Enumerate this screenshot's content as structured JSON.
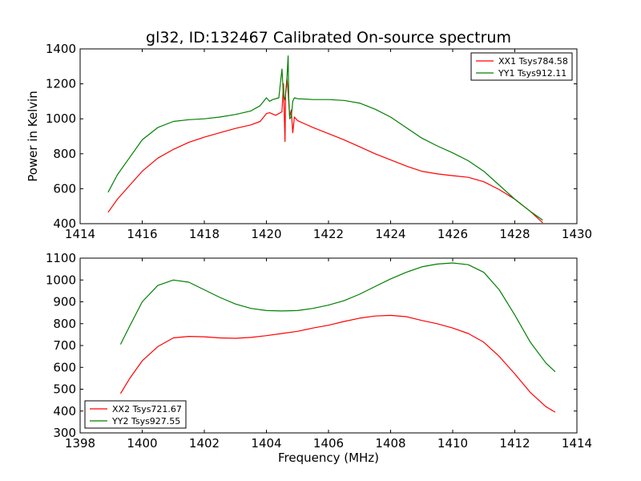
{
  "title": "gl32, ID:132467 Calibrated On-source spectrum",
  "colors": {
    "red": "#ff0000",
    "green": "#008000"
  },
  "chart_data": [
    {
      "type": "line",
      "ylabel": "Power in Kelvin",
      "xlabel": "",
      "xlim": [
        1414,
        1430
      ],
      "ylim": [
        400,
        1400
      ],
      "xticks": [
        1414,
        1416,
        1418,
        1420,
        1422,
        1424,
        1426,
        1428,
        1430
      ],
      "yticks": [
        400,
        600,
        800,
        1000,
        1200,
        1400
      ],
      "legend_position": "upper right",
      "series": [
        {
          "name": "XX1 Tsys784.58",
          "color": "#ff0000",
          "x": [
            1414.9,
            1415.2,
            1415.6,
            1416.0,
            1416.5,
            1417.0,
            1417.5,
            1418.0,
            1418.5,
            1419.0,
            1419.5,
            1419.8,
            1420.0,
            1420.1,
            1420.3,
            1420.5,
            1420.55,
            1420.6,
            1420.62,
            1420.66,
            1420.7,
            1420.75,
            1420.8,
            1420.85,
            1420.9,
            1421.0,
            1421.5,
            1422.0,
            1422.5,
            1423.0,
            1423.5,
            1424.0,
            1424.5,
            1425.0,
            1425.5,
            1426.0,
            1426.5,
            1427.0,
            1427.5,
            1428.0,
            1428.5,
            1428.9
          ],
          "y": [
            465,
            540,
            620,
            700,
            775,
            825,
            865,
            895,
            920,
            945,
            965,
            985,
            1030,
            1035,
            1020,
            1040,
            1200,
            870,
            1150,
            1230,
            1150,
            1010,
            1050,
            920,
            1010,
            990,
            950,
            915,
            880,
            840,
            800,
            765,
            730,
            700,
            685,
            675,
            665,
            640,
            595,
            540,
            470,
            405
          ]
        },
        {
          "name": "YY1 Tsys912.11",
          "color": "#008000",
          "x": [
            1414.9,
            1415.2,
            1415.6,
            1416.0,
            1416.5,
            1417.0,
            1417.5,
            1418.0,
            1418.5,
            1419.0,
            1419.5,
            1419.8,
            1420.0,
            1420.1,
            1420.2,
            1420.4,
            1420.5,
            1420.55,
            1420.6,
            1420.65,
            1420.7,
            1420.72,
            1420.75,
            1420.8,
            1420.85,
            1420.9,
            1421.0,
            1421.5,
            1422.0,
            1422.5,
            1423.0,
            1423.5,
            1424.0,
            1424.5,
            1425.0,
            1425.5,
            1426.0,
            1426.5,
            1427.0,
            1427.5,
            1428.0,
            1428.5,
            1428.9
          ],
          "y": [
            580,
            680,
            780,
            880,
            950,
            985,
            995,
            1000,
            1010,
            1025,
            1045,
            1075,
            1120,
            1100,
            1110,
            1120,
            1285,
            1130,
            1110,
            1200,
            1360,
            1120,
            1000,
            1010,
            1100,
            1120,
            1115,
            1110,
            1110,
            1105,
            1090,
            1055,
            1010,
            950,
            890,
            845,
            805,
            760,
            700,
            620,
            540,
            470,
            420
          ]
        }
      ]
    },
    {
      "type": "line",
      "xlabel": "Frequency (MHz)",
      "ylabel": "",
      "xlim": [
        1398,
        1414
      ],
      "ylim": [
        300,
        1100
      ],
      "xticks": [
        1398,
        1400,
        1402,
        1404,
        1406,
        1408,
        1410,
        1412,
        1414
      ],
      "yticks": [
        300,
        400,
        500,
        600,
        700,
        800,
        900,
        1000,
        1100
      ],
      "legend_position": "lower left",
      "series": [
        {
          "name": "XX2 Tsys721.67",
          "color": "#ff0000",
          "x": [
            1399.3,
            1399.6,
            1400.0,
            1400.5,
            1401.0,
            1401.5,
            1402.0,
            1402.5,
            1403.0,
            1403.5,
            1404.0,
            1404.5,
            1405.0,
            1405.5,
            1406.0,
            1406.5,
            1407.0,
            1407.5,
            1408.0,
            1408.5,
            1409.0,
            1409.5,
            1410.0,
            1410.5,
            1411.0,
            1411.5,
            1412.0,
            1412.5,
            1413.0,
            1413.3
          ],
          "y": [
            480,
            550,
            630,
            695,
            735,
            742,
            740,
            735,
            733,
            737,
            745,
            755,
            765,
            780,
            793,
            810,
            825,
            835,
            838,
            832,
            815,
            800,
            780,
            755,
            715,
            650,
            570,
            485,
            420,
            395
          ]
        },
        {
          "name": "YY2 Tsys927.55",
          "color": "#008000",
          "x": [
            1399.3,
            1399.6,
            1400.0,
            1400.5,
            1401.0,
            1401.5,
            1402.0,
            1402.5,
            1403.0,
            1403.5,
            1404.0,
            1404.5,
            1405.0,
            1405.5,
            1406.0,
            1406.5,
            1407.0,
            1407.5,
            1408.0,
            1408.5,
            1409.0,
            1409.5,
            1410.0,
            1410.5,
            1411.0,
            1411.5,
            1412.0,
            1412.5,
            1413.0,
            1413.3
          ],
          "y": [
            705,
            790,
            900,
            975,
            1000,
            990,
            955,
            920,
            890,
            870,
            860,
            858,
            860,
            870,
            885,
            905,
            935,
            970,
            1005,
            1035,
            1060,
            1073,
            1078,
            1070,
            1035,
            955,
            840,
            715,
            620,
            580
          ]
        }
      ]
    }
  ]
}
